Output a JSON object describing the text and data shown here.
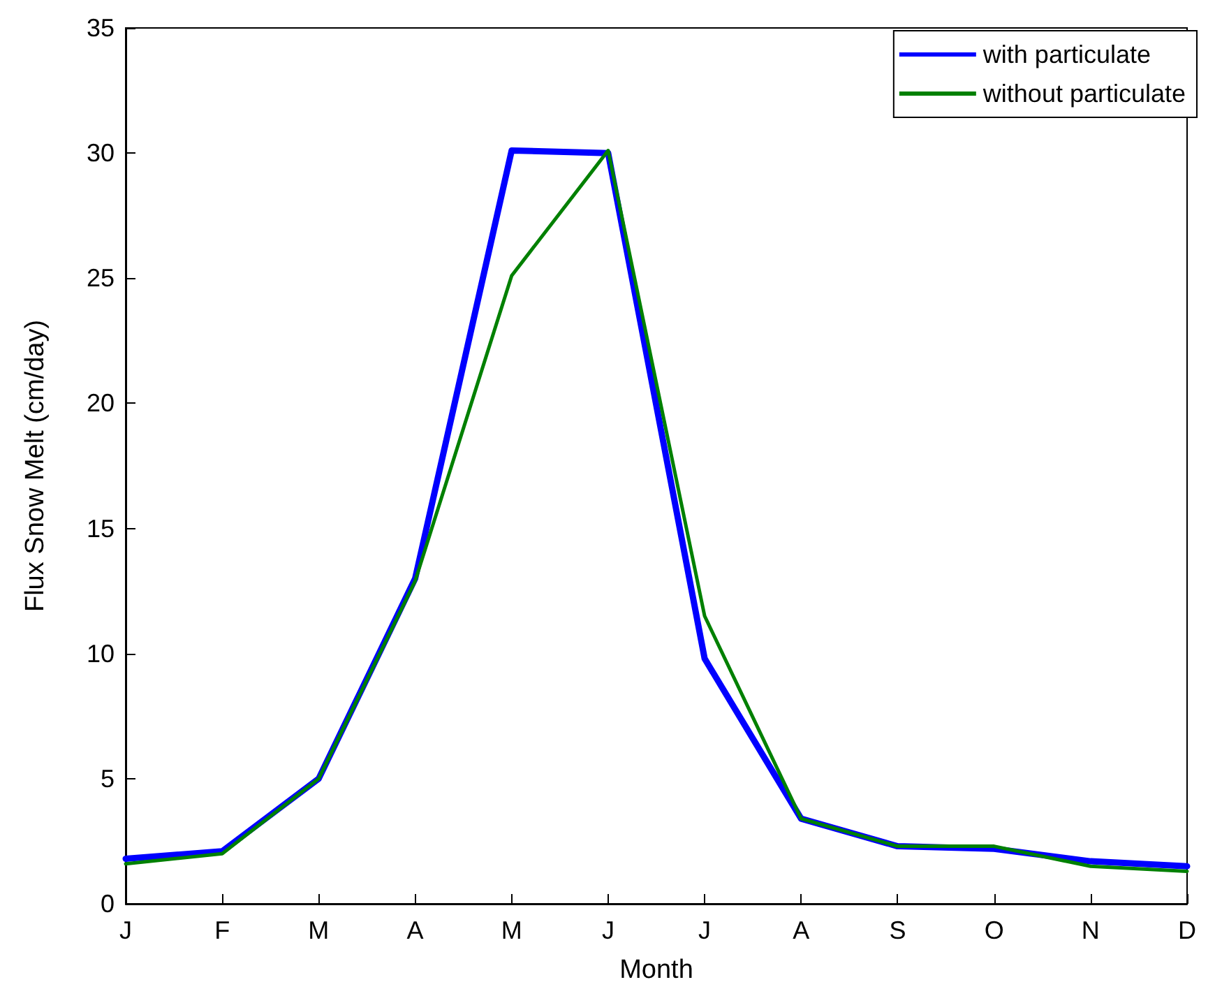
{
  "chart_data": {
    "type": "line",
    "xlabel": "Month",
    "ylabel": "Flux Snow Melt (cm/day)",
    "categories": [
      "J",
      "F",
      "M",
      "A",
      "M",
      "J",
      "J",
      "A",
      "S",
      "O",
      "N",
      "D"
    ],
    "series": [
      {
        "name": "with particulate",
        "color": "#0000ff",
        "values": [
          1.8,
          2.1,
          5.0,
          13.0,
          30.1,
          30.0,
          9.8,
          3.4,
          2.3,
          2.2,
          1.7,
          1.5
        ]
      },
      {
        "name": "without particulate",
        "color": "#008000",
        "values": [
          1.6,
          2.0,
          5.0,
          12.9,
          25.1,
          30.1,
          11.5,
          3.4,
          2.3,
          2.3,
          1.5,
          1.3
        ]
      }
    ],
    "ylim": [
      0,
      35
    ],
    "yticks": [
      0,
      5,
      10,
      15,
      20,
      25,
      30,
      35
    ],
    "grid": false,
    "legend": "top right",
    "marker": "none",
    "line_style": "solid"
  }
}
